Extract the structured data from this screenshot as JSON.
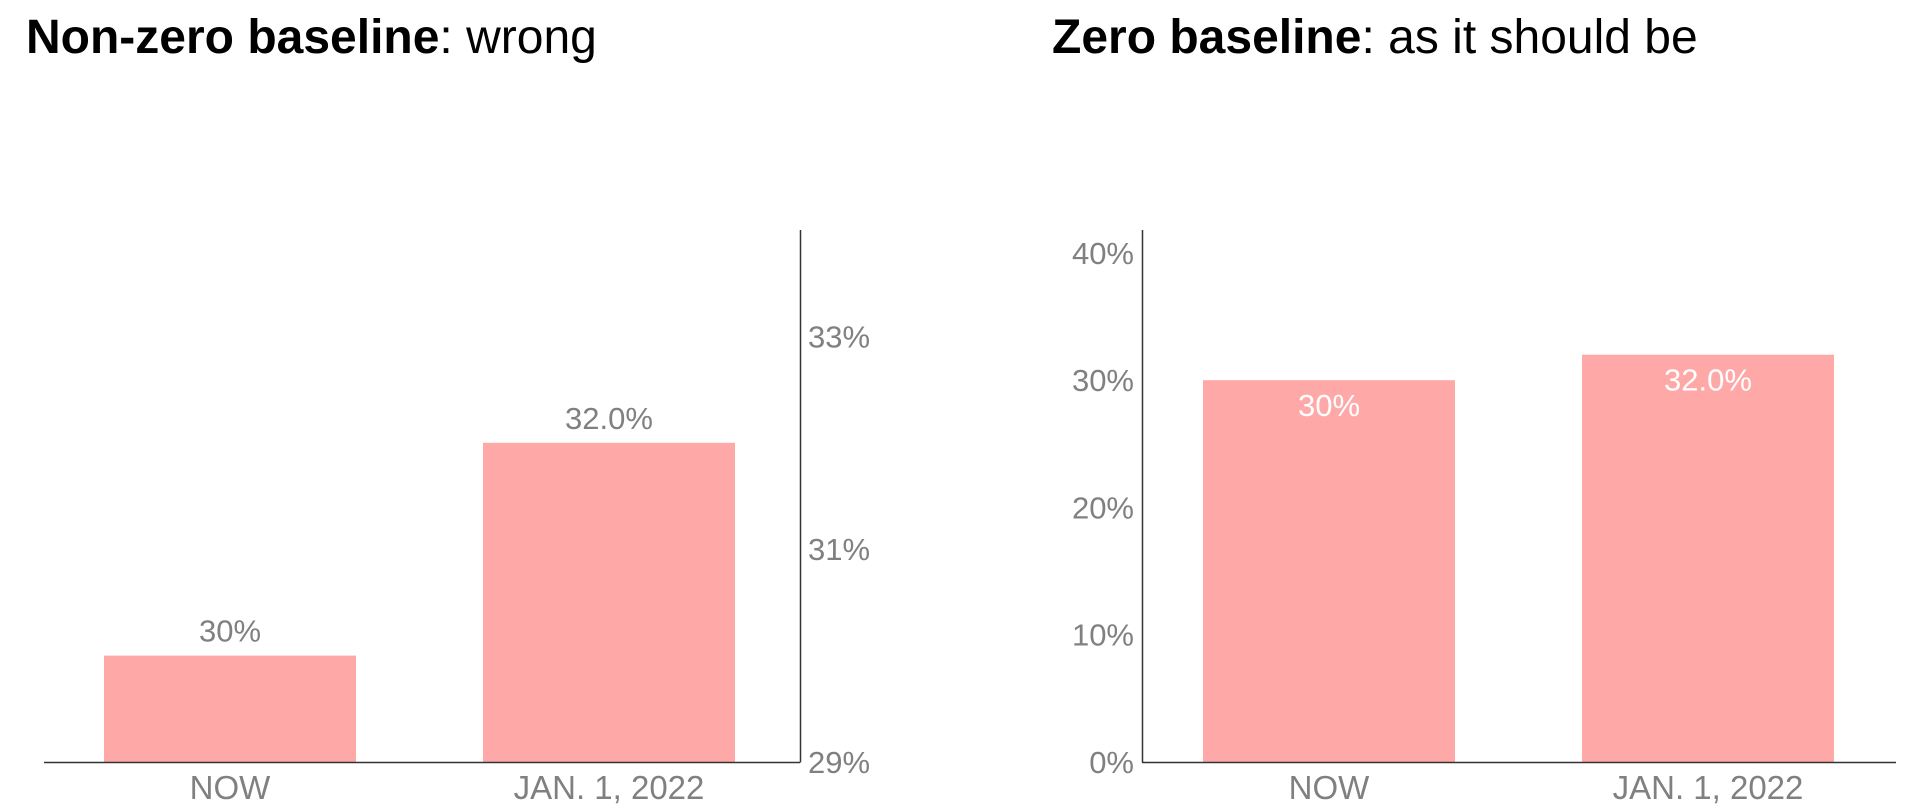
{
  "chart_data": [
    {
      "type": "bar",
      "title_bold": "Non-zero baseline",
      "title_rest": ": wrong",
      "categories": [
        "NOW",
        "JAN. 1, 2022"
      ],
      "values": [
        30,
        32
      ],
      "value_labels": [
        "30%",
        "32.0%"
      ],
      "ylim": [
        29,
        34
      ],
      "yticks": [
        29,
        31,
        33
      ],
      "ytick_labels": [
        "29%",
        "31%",
        "33%"
      ],
      "y_axis_side": "right",
      "value_label_position": "above",
      "grid": false,
      "bar_color": "#ffa8a8",
      "value_label_color": "#808080"
    },
    {
      "type": "bar",
      "title_bold": "Zero baseline",
      "title_rest": ": as it should be",
      "categories": [
        "NOW",
        "JAN. 1, 2022"
      ],
      "values": [
        30,
        32
      ],
      "value_labels": [
        "30%",
        "32.0%"
      ],
      "ylim": [
        0,
        41.8
      ],
      "yticks": [
        0,
        10,
        20,
        30,
        40
      ],
      "ytick_labels": [
        "0%",
        "10%",
        "20%",
        "30%",
        "40%"
      ],
      "y_axis_side": "left",
      "value_label_position": "inside",
      "grid": false,
      "bar_color": "#ffa8a8",
      "value_label_color": "#ffffff"
    }
  ]
}
